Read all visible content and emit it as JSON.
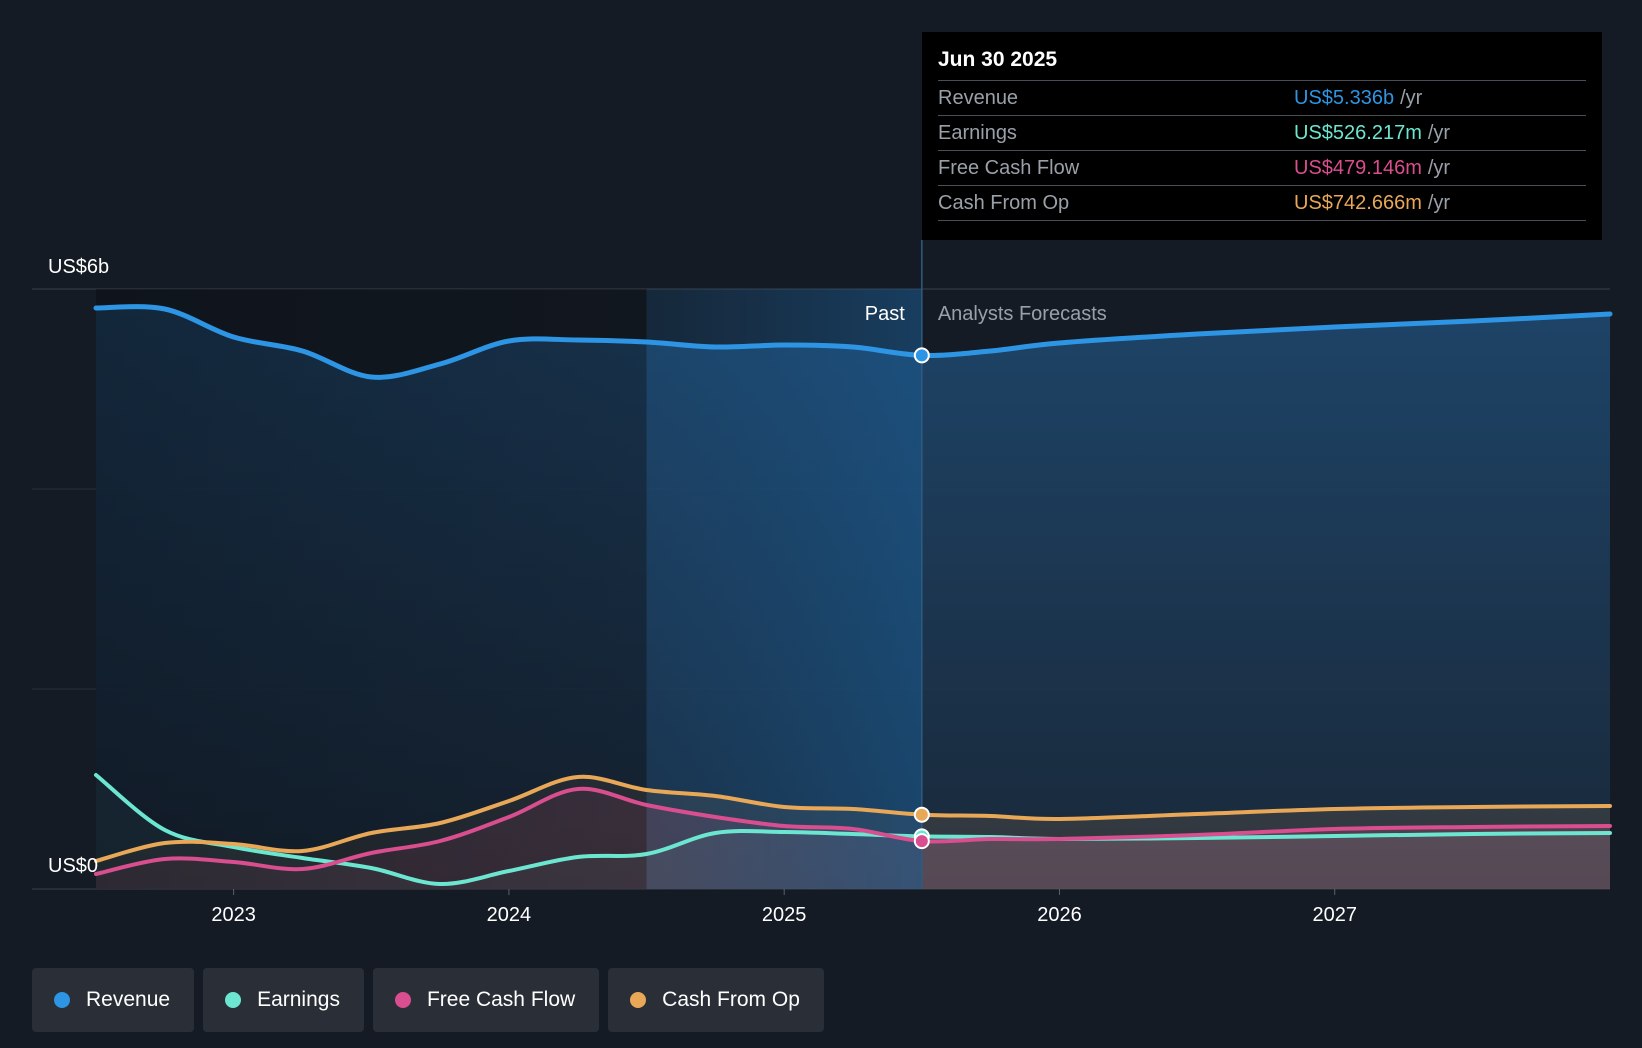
{
  "chart_data": {
    "type": "area",
    "y_unit_label_top": "US$6b",
    "y_unit_label_bottom": "US$0",
    "ylim": [
      0,
      6
    ],
    "xlim": [
      2022.5,
      2028.0
    ],
    "x_ticks": [
      {
        "value": 2023,
        "label": "2023"
      },
      {
        "value": 2024,
        "label": "2024"
      },
      {
        "value": 2025,
        "label": "2025"
      },
      {
        "value": 2026,
        "label": "2026"
      },
      {
        "value": 2027,
        "label": "2027"
      }
    ],
    "past_label": "Past",
    "forecast_label": "Analysts Forecasts",
    "divider_x": 2025.5,
    "highlight_start_x": 2024.5,
    "series": [
      {
        "name": "Revenue",
        "key": "revenue",
        "color": "#2d95e3",
        "points": [
          [
            2022.5,
            5.81
          ],
          [
            2022.75,
            5.8
          ],
          [
            2023.0,
            5.52
          ],
          [
            2023.25,
            5.38
          ],
          [
            2023.5,
            5.12
          ],
          [
            2023.75,
            5.25
          ],
          [
            2024.0,
            5.48
          ],
          [
            2024.25,
            5.49
          ],
          [
            2024.5,
            5.47
          ],
          [
            2024.75,
            5.42
          ],
          [
            2025.0,
            5.44
          ],
          [
            2025.25,
            5.42
          ],
          [
            2025.5,
            5.336
          ],
          [
            2025.75,
            5.38
          ],
          [
            2026.0,
            5.46
          ],
          [
            2026.5,
            5.55
          ],
          [
            2027.0,
            5.62
          ],
          [
            2027.5,
            5.68
          ],
          [
            2028.0,
            5.75
          ]
        ]
      },
      {
        "name": "Earnings",
        "key": "earnings",
        "color": "#6ce6d1",
        "points": [
          [
            2022.5,
            1.14
          ],
          [
            2022.75,
            0.59
          ],
          [
            2023.0,
            0.42
          ],
          [
            2023.25,
            0.31
          ],
          [
            2023.5,
            0.21
          ],
          [
            2023.75,
            0.05
          ],
          [
            2024.0,
            0.18
          ],
          [
            2024.25,
            0.32
          ],
          [
            2024.5,
            0.35
          ],
          [
            2024.75,
            0.56
          ],
          [
            2025.0,
            0.57
          ],
          [
            2025.25,
            0.55
          ],
          [
            2025.5,
            0.526
          ],
          [
            2025.75,
            0.52
          ],
          [
            2026.0,
            0.5
          ],
          [
            2026.5,
            0.51
          ],
          [
            2027.0,
            0.53
          ],
          [
            2027.5,
            0.55
          ],
          [
            2028.0,
            0.56
          ]
        ]
      },
      {
        "name": "Free Cash Flow",
        "key": "fcf",
        "color": "#d84e8e",
        "points": [
          [
            2022.5,
            0.15
          ],
          [
            2022.75,
            0.3
          ],
          [
            2023.0,
            0.27
          ],
          [
            2023.25,
            0.2
          ],
          [
            2023.5,
            0.36
          ],
          [
            2023.75,
            0.48
          ],
          [
            2024.0,
            0.72
          ],
          [
            2024.25,
            1.0
          ],
          [
            2024.5,
            0.84
          ],
          [
            2024.75,
            0.72
          ],
          [
            2025.0,
            0.63
          ],
          [
            2025.25,
            0.6
          ],
          [
            2025.5,
            0.479
          ],
          [
            2025.75,
            0.5
          ],
          [
            2026.0,
            0.5
          ],
          [
            2026.5,
            0.54
          ],
          [
            2027.0,
            0.6
          ],
          [
            2027.5,
            0.62
          ],
          [
            2028.0,
            0.63
          ]
        ]
      },
      {
        "name": "Cash From Op",
        "key": "cfo",
        "color": "#e9a857",
        "points": [
          [
            2022.5,
            0.28
          ],
          [
            2022.75,
            0.46
          ],
          [
            2023.0,
            0.45
          ],
          [
            2023.25,
            0.38
          ],
          [
            2023.5,
            0.56
          ],
          [
            2023.75,
            0.66
          ],
          [
            2024.0,
            0.88
          ],
          [
            2024.25,
            1.12
          ],
          [
            2024.5,
            0.99
          ],
          [
            2024.75,
            0.93
          ],
          [
            2025.0,
            0.82
          ],
          [
            2025.25,
            0.8
          ],
          [
            2025.5,
            0.743
          ],
          [
            2025.75,
            0.73
          ],
          [
            2026.0,
            0.7
          ],
          [
            2026.5,
            0.75
          ],
          [
            2027.0,
            0.8
          ],
          [
            2027.5,
            0.82
          ],
          [
            2028.0,
            0.83
          ]
        ]
      }
    ]
  },
  "tooltip": {
    "date": "Jun 30 2025",
    "rows": [
      {
        "name": "Revenue",
        "value": "US$5.336b",
        "unit": "/yr",
        "color": "#2d95e3"
      },
      {
        "name": "Earnings",
        "value": "US$526.217m",
        "unit": "/yr",
        "color": "#6ce6d1"
      },
      {
        "name": "Free Cash Flow",
        "value": "US$479.146m",
        "unit": "/yr",
        "color": "#d84e8e"
      },
      {
        "name": "Cash From Op",
        "value": "US$742.666m",
        "unit": "/yr",
        "color": "#e9a857"
      }
    ]
  },
  "legend": [
    {
      "label": "Revenue",
      "color": "#2d95e3"
    },
    {
      "label": "Earnings",
      "color": "#6ce6d1"
    },
    {
      "label": "Free Cash Flow",
      "color": "#d84e8e"
    },
    {
      "label": "Cash From Op",
      "color": "#e9a857"
    }
  ]
}
